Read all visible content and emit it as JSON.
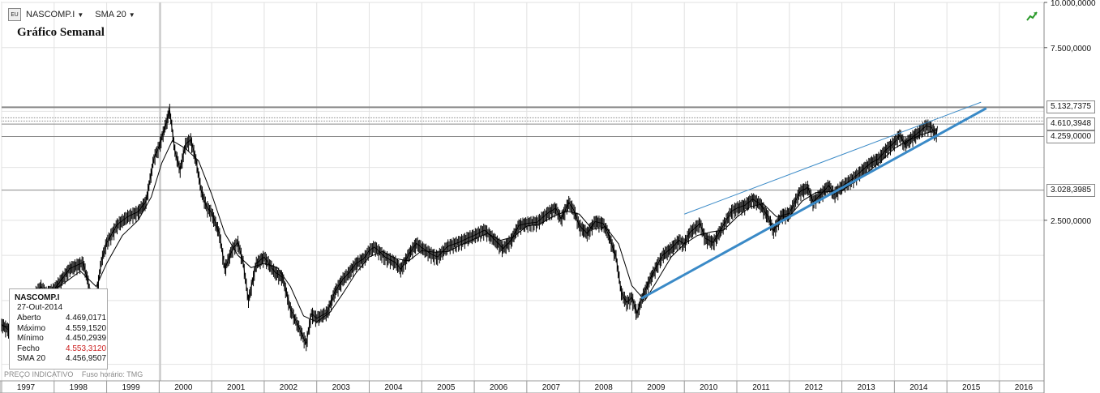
{
  "toolbar": {
    "symbol_label": "NASCOMP.I",
    "indicator_label": "SMA 20",
    "icon": "chart-type-icon"
  },
  "title": "Gráfico Semanal",
  "footer": {
    "indicative": "PREÇO INDICATIVO",
    "timezone": "Fuso horário: TMG"
  },
  "infobox": {
    "symbol": "NASCOMP.I",
    "date": "27-Out-2014",
    "rows": [
      {
        "label": "Aberto",
        "value": "4.469,0171"
      },
      {
        "label": "Máximo",
        "value": "4.559,1520"
      },
      {
        "label": "Mínimo",
        "value": "4.450,2939"
      },
      {
        "label": "Fecho",
        "value": "4.553,3120"
      },
      {
        "label": "SMA 20",
        "value": "4.456,9507"
      }
    ]
  },
  "colors": {
    "price": "#000000",
    "sma": "#000000",
    "trend_lower": "#3a8ac7",
    "trend_upper": "#3a8ac7",
    "grid": "#e2e2e2",
    "hline": "#888888",
    "close_value": "#cc2020"
  },
  "chart_data": {
    "type": "line",
    "title": "Gráfico Semanal",
    "y_scale": "log",
    "ylim": [
      900,
      10000
    ],
    "yticks": [
      {
        "value": 10000,
        "label": "10.000,0000"
      },
      {
        "value": 7500,
        "label": "7.500,0000"
      },
      {
        "value": 2500,
        "label": "2.500,0000"
      }
    ],
    "x_years": [
      "1997",
      "1998",
      "1999",
      "2000",
      "2001",
      "2002",
      "2003",
      "2004",
      "2005",
      "2006",
      "2007",
      "2008",
      "2009",
      "2010",
      "2011",
      "2012",
      "2013",
      "2014",
      "2015",
      "2016"
    ],
    "xlim": [
      1997.0,
      2016.85
    ],
    "grid": true,
    "hlines": [
      {
        "value": 5132.7375,
        "label": "5.132,7375",
        "boxed": true
      },
      {
        "value": 4610.3948,
        "label": "4.610,3948",
        "boxed": true
      },
      {
        "value": 4259.0,
        "label": "4.259,0000",
        "boxed": true
      },
      {
        "value": 3028.3985,
        "label": "3.028,3985",
        "boxed": true
      },
      {
        "value": 4800,
        "label": "",
        "boxed": false
      },
      {
        "value": 4700,
        "label": "",
        "boxed": false
      }
    ],
    "series": [
      {
        "key": "price",
        "points": [
          [
            1997.0,
            1290
          ],
          [
            1997.15,
            1240
          ],
          [
            1997.3,
            1190
          ],
          [
            1997.5,
            1480
          ],
          [
            1997.75,
            1640
          ],
          [
            1997.85,
            1570
          ],
          [
            1998.0,
            1610
          ],
          [
            1998.3,
            1840
          ],
          [
            1998.55,
            1910
          ],
          [
            1998.65,
            1690
          ],
          [
            1998.75,
            1370
          ],
          [
            1998.9,
            1930
          ],
          [
            1999.0,
            2170
          ],
          [
            1999.2,
            2430
          ],
          [
            1999.4,
            2560
          ],
          [
            1999.6,
            2640
          ],
          [
            1999.75,
            2820
          ],
          [
            1999.9,
            3710
          ],
          [
            2000.0,
            4000
          ],
          [
            2000.15,
            4730
          ],
          [
            2000.2,
            5040
          ],
          [
            2000.3,
            3880
          ],
          [
            2000.4,
            3450
          ],
          [
            2000.5,
            4050
          ],
          [
            2000.6,
            4180
          ],
          [
            2000.7,
            3670
          ],
          [
            2000.8,
            3030
          ],
          [
            2000.9,
            2730
          ],
          [
            2001.0,
            2620
          ],
          [
            2001.15,
            2290
          ],
          [
            2001.25,
            1840
          ],
          [
            2001.4,
            2090
          ],
          [
            2001.5,
            2170
          ],
          [
            2001.6,
            1910
          ],
          [
            2001.7,
            1500
          ],
          [
            2001.85,
            1900
          ],
          [
            2002.0,
            1980
          ],
          [
            2002.2,
            1800
          ],
          [
            2002.35,
            1740
          ],
          [
            2002.5,
            1420
          ],
          [
            2002.6,
            1320
          ],
          [
            2002.8,
            1140
          ],
          [
            2002.9,
            1380
          ],
          [
            2003.0,
            1340
          ],
          [
            2003.2,
            1390
          ],
          [
            2003.35,
            1590
          ],
          [
            2003.5,
            1720
          ],
          [
            2003.6,
            1780
          ],
          [
            2003.75,
            1900
          ],
          [
            2003.9,
            1960
          ],
          [
            2004.0,
            2060
          ],
          [
            2004.1,
            2110
          ],
          [
            2004.3,
            1980
          ],
          [
            2004.5,
            1910
          ],
          [
            2004.6,
            1830
          ],
          [
            2004.75,
            2010
          ],
          [
            2004.9,
            2160
          ],
          [
            2005.0,
            2100
          ],
          [
            2005.2,
            2010
          ],
          [
            2005.3,
            1980
          ],
          [
            2005.5,
            2120
          ],
          [
            2005.7,
            2170
          ],
          [
            2005.9,
            2240
          ],
          [
            2006.0,
            2270
          ],
          [
            2006.2,
            2350
          ],
          [
            2006.4,
            2200
          ],
          [
            2006.55,
            2090
          ],
          [
            2006.7,
            2200
          ],
          [
            2006.85,
            2420
          ],
          [
            2007.0,
            2450
          ],
          [
            2007.2,
            2470
          ],
          [
            2007.4,
            2620
          ],
          [
            2007.55,
            2700
          ],
          [
            2007.65,
            2520
          ],
          [
            2007.8,
            2800
          ],
          [
            2007.9,
            2660
          ],
          [
            2008.0,
            2420
          ],
          [
            2008.15,
            2300
          ],
          [
            2008.3,
            2480
          ],
          [
            2008.45,
            2450
          ],
          [
            2008.55,
            2300
          ],
          [
            2008.7,
            1980
          ],
          [
            2008.8,
            1580
          ],
          [
            2008.9,
            1480
          ],
          [
            2009.0,
            1530
          ],
          [
            2009.1,
            1380
          ],
          [
            2009.2,
            1530
          ],
          [
            2009.35,
            1720
          ],
          [
            2009.5,
            1900
          ],
          [
            2009.6,
            2010
          ],
          [
            2009.75,
            2090
          ],
          [
            2009.9,
            2200
          ],
          [
            2010.0,
            2150
          ],
          [
            2010.1,
            2310
          ],
          [
            2010.3,
            2450
          ],
          [
            2010.4,
            2230
          ],
          [
            2010.55,
            2170
          ],
          [
            2010.7,
            2360
          ],
          [
            2010.9,
            2650
          ],
          [
            2011.0,
            2700
          ],
          [
            2011.15,
            2750
          ],
          [
            2011.3,
            2860
          ],
          [
            2011.45,
            2770
          ],
          [
            2011.6,
            2550
          ],
          [
            2011.7,
            2340
          ],
          [
            2011.85,
            2580
          ],
          [
            2012.0,
            2610
          ],
          [
            2012.2,
            3000
          ],
          [
            2012.35,
            3080
          ],
          [
            2012.45,
            2810
          ],
          [
            2012.6,
            2950
          ],
          [
            2012.75,
            3120
          ],
          [
            2012.85,
            2950
          ],
          [
            2013.0,
            3100
          ],
          [
            2013.2,
            3250
          ],
          [
            2013.4,
            3450
          ],
          [
            2013.55,
            3600
          ],
          [
            2013.7,
            3700
          ],
          [
            2013.85,
            3930
          ],
          [
            2014.0,
            4100
          ],
          [
            2014.1,
            4300
          ],
          [
            2014.2,
            4050
          ],
          [
            2014.35,
            4250
          ],
          [
            2014.5,
            4420
          ],
          [
            2014.6,
            4560
          ],
          [
            2014.7,
            4520
          ],
          [
            2014.8,
            4300
          ],
          [
            2014.82,
            4550
          ]
        ]
      },
      {
        "key": "sma",
        "points": [
          [
            1997.0,
            1280
          ],
          [
            1997.3,
            1250
          ],
          [
            1997.6,
            1390
          ],
          [
            1997.9,
            1580
          ],
          [
            1998.2,
            1680
          ],
          [
            1998.5,
            1810
          ],
          [
            1998.8,
            1640
          ],
          [
            1999.0,
            1900
          ],
          [
            1999.3,
            2270
          ],
          [
            1999.6,
            2500
          ],
          [
            1999.85,
            2900
          ],
          [
            2000.05,
            3600
          ],
          [
            2000.25,
            4150
          ],
          [
            2000.5,
            3950
          ],
          [
            2000.75,
            3650
          ],
          [
            2001.0,
            2950
          ],
          [
            2001.25,
            2300
          ],
          [
            2001.5,
            2000
          ],
          [
            2001.75,
            1850
          ],
          [
            2002.0,
            1900
          ],
          [
            2002.25,
            1850
          ],
          [
            2002.5,
            1640
          ],
          [
            2002.75,
            1360
          ],
          [
            2003.0,
            1310
          ],
          [
            2003.25,
            1390
          ],
          [
            2003.5,
            1570
          ],
          [
            2003.75,
            1790
          ],
          [
            2004.0,
            1980
          ],
          [
            2004.25,
            2050
          ],
          [
            2004.5,
            1960
          ],
          [
            2004.75,
            1930
          ],
          [
            2005.0,
            2060
          ],
          [
            2005.25,
            2040
          ],
          [
            2005.5,
            2050
          ],
          [
            2005.75,
            2140
          ],
          [
            2006.0,
            2220
          ],
          [
            2006.25,
            2300
          ],
          [
            2006.5,
            2200
          ],
          [
            2006.75,
            2250
          ],
          [
            2007.0,
            2410
          ],
          [
            2007.25,
            2440
          ],
          [
            2007.5,
            2560
          ],
          [
            2007.75,
            2650
          ],
          [
            2008.0,
            2600
          ],
          [
            2008.25,
            2360
          ],
          [
            2008.5,
            2400
          ],
          [
            2008.75,
            2150
          ],
          [
            2009.0,
            1650
          ],
          [
            2009.25,
            1500
          ],
          [
            2009.5,
            1720
          ],
          [
            2009.75,
            1980
          ],
          [
            2010.0,
            2150
          ],
          [
            2010.25,
            2270
          ],
          [
            2010.5,
            2320
          ],
          [
            2010.75,
            2350
          ],
          [
            2011.0,
            2550
          ],
          [
            2011.25,
            2720
          ],
          [
            2011.5,
            2780
          ],
          [
            2011.75,
            2560
          ],
          [
            2012.0,
            2560
          ],
          [
            2012.25,
            2830
          ],
          [
            2012.5,
            2980
          ],
          [
            2012.75,
            3000
          ],
          [
            2013.0,
            3020
          ],
          [
            2013.25,
            3200
          ],
          [
            2013.5,
            3400
          ],
          [
            2013.75,
            3650
          ],
          [
            2014.0,
            3950
          ],
          [
            2014.25,
            4150
          ],
          [
            2014.5,
            4300
          ],
          [
            2014.75,
            4420
          ],
          [
            2014.82,
            4457
          ]
        ]
      }
    ],
    "trendlines": [
      {
        "key": "lower",
        "from": [
          2009.18,
          1520
        ],
        "to": [
          2015.75,
          5100
        ],
        "width": 3
      },
      {
        "key": "upper",
        "from": [
          2010.0,
          2600
        ],
        "to": [
          2015.65,
          5300
        ],
        "width": 1
      }
    ]
  }
}
